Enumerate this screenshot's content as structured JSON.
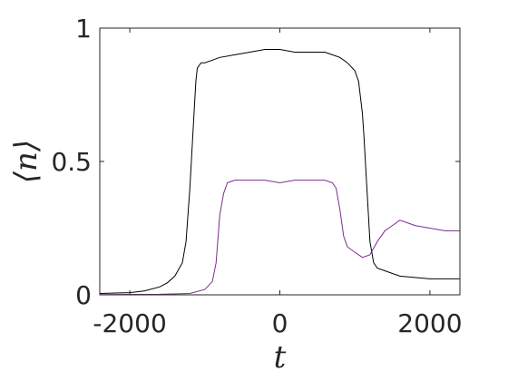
{
  "chart_data": {
    "type": "line",
    "title": "",
    "xlabel": "t",
    "ylabel": "⟨n⟩",
    "xlim": [
      -2400,
      2400
    ],
    "ylim": [
      0,
      1
    ],
    "x_ticks": [
      -2000,
      0,
      2000
    ],
    "x_tick_labels": [
      "-2000",
      "0",
      "2000"
    ],
    "y_ticks": [
      0,
      0.5,
      1
    ],
    "y_tick_labels": [
      "0",
      "0.5",
      "1"
    ],
    "grid": false,
    "legend": "none",
    "series": [
      {
        "color": "#000000",
        "x": [
          -2400,
          -2000,
          -1800,
          -1600,
          -1500,
          -1400,
          -1300,
          -1250,
          -1200,
          -1150,
          -1120,
          -1100,
          -1050,
          -1000,
          -900,
          -800,
          -600,
          -400,
          -200,
          0,
          200,
          400,
          600,
          700,
          800,
          900,
          1000,
          1050,
          1100,
          1120,
          1150,
          1170,
          1200,
          1250,
          1300,
          1400,
          1500,
          1600,
          1800,
          2000,
          2200,
          2400
        ],
        "y": [
          0.005,
          0.008,
          0.015,
          0.03,
          0.045,
          0.07,
          0.12,
          0.2,
          0.4,
          0.65,
          0.8,
          0.85,
          0.87,
          0.87,
          0.88,
          0.89,
          0.9,
          0.91,
          0.92,
          0.92,
          0.91,
          0.91,
          0.91,
          0.9,
          0.89,
          0.87,
          0.84,
          0.8,
          0.68,
          0.6,
          0.45,
          0.35,
          0.2,
          0.12,
          0.1,
          0.09,
          0.08,
          0.07,
          0.065,
          0.06,
          0.06,
          0.06
        ]
      },
      {
        "color": "#7b2d8e",
        "x": [
          -2400,
          -1600,
          -1200,
          -1000,
          -900,
          -850,
          -800,
          -750,
          -700,
          -600,
          -400,
          -200,
          0,
          200,
          400,
          600,
          700,
          750,
          800,
          850,
          900,
          1000,
          1100,
          1200,
          1300,
          1400,
          1500,
          1600,
          1700,
          1800,
          2000,
          2200,
          2400
        ],
        "y": [
          0.001,
          0.002,
          0.005,
          0.02,
          0.05,
          0.12,
          0.3,
          0.38,
          0.42,
          0.43,
          0.43,
          0.43,
          0.42,
          0.43,
          0.43,
          0.43,
          0.42,
          0.4,
          0.32,
          0.22,
          0.18,
          0.16,
          0.14,
          0.15,
          0.2,
          0.24,
          0.26,
          0.28,
          0.27,
          0.26,
          0.25,
          0.24,
          0.24
        ]
      }
    ]
  }
}
